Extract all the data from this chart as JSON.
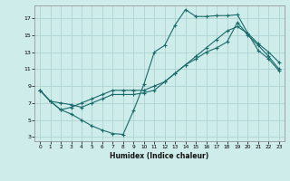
{
  "xlabel": "Humidex (Indice chaleur)",
  "bg_color": "#ceecea",
  "grid_color": "#aed4d2",
  "line_color": "#1a6b6b",
  "xlim": [
    -0.5,
    23.5
  ],
  "ylim": [
    2.5,
    18.5
  ],
  "xticks": [
    0,
    1,
    2,
    3,
    4,
    5,
    6,
    7,
    8,
    9,
    10,
    11,
    12,
    13,
    14,
    15,
    16,
    17,
    18,
    19,
    20,
    21,
    22,
    23
  ],
  "yticks": [
    3,
    5,
    7,
    9,
    11,
    13,
    15,
    17
  ],
  "line1_x": [
    0,
    1,
    2,
    3,
    4,
    5,
    6,
    7,
    8,
    9,
    10,
    11,
    12,
    13,
    14,
    15,
    16,
    17,
    18,
    19,
    20,
    21,
    22,
    23
  ],
  "line1_y": [
    8.5,
    7.2,
    6.2,
    5.7,
    5.0,
    4.3,
    3.8,
    3.4,
    3.3,
    6.1,
    9.2,
    13.0,
    13.8,
    16.2,
    18.0,
    17.2,
    17.2,
    17.3,
    17.3,
    17.4,
    15.2,
    13.2,
    12.2,
    10.8
  ],
  "line2_x": [
    0,
    1,
    2,
    3,
    4,
    5,
    6,
    7,
    8,
    9,
    10,
    11,
    12,
    13,
    14,
    15,
    16,
    17,
    18,
    19,
    20,
    21,
    22,
    23
  ],
  "line2_y": [
    8.5,
    7.2,
    7.0,
    6.8,
    6.5,
    7.0,
    7.5,
    8.0,
    8.0,
    8.0,
    8.2,
    8.5,
    9.5,
    10.5,
    11.5,
    12.5,
    13.5,
    14.5,
    15.5,
    16.0,
    15.2,
    14.0,
    13.0,
    11.8
  ],
  "line3_x": [
    0,
    1,
    2,
    3,
    4,
    5,
    6,
    7,
    8,
    9,
    10,
    11,
    12,
    13,
    14,
    15,
    16,
    17,
    18,
    19,
    20,
    21,
    22,
    23
  ],
  "line3_y": [
    8.5,
    7.2,
    6.2,
    6.5,
    7.0,
    7.5,
    8.0,
    8.5,
    8.5,
    8.5,
    8.5,
    9.0,
    9.5,
    10.5,
    11.5,
    12.2,
    13.0,
    13.5,
    14.2,
    16.5,
    15.0,
    13.8,
    12.5,
    11.0
  ],
  "marker": "+",
  "markersize": 3,
  "linewidth": 0.8
}
